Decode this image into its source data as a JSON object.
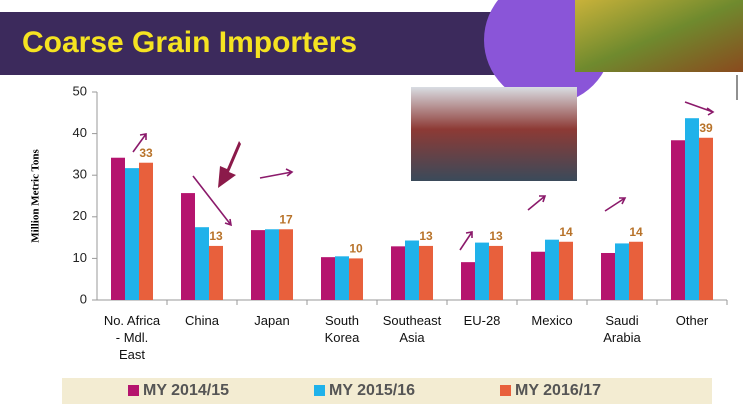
{
  "chart_data": {
    "type": "bar",
    "title": "Coarse Grain Importers",
    "y_label": "Million Metric Tons",
    "categories": [
      "No. Africa - Mdl. East",
      "China",
      "Japan",
      "South Korea",
      "Southeast Asia",
      "EU-28",
      "Mexico",
      "Saudi Arabia",
      "Other"
    ],
    "series": [
      {
        "name": "MY 2014/15",
        "color": "#b5146e",
        "values": [
          34.2,
          25.7,
          16.8,
          10.3,
          12.9,
          9.1,
          11.6,
          11.3,
          38.4
        ]
      },
      {
        "name": "MY 2015/16",
        "color": "#1fb2ea",
        "values": [
          31.7,
          17.5,
          17,
          10.5,
          14.3,
          13.8,
          14.5,
          13.6,
          43.7
        ]
      },
      {
        "name": "MY 2016/17",
        "color": "#e8603c",
        "values": [
          33,
          13,
          17,
          10,
          13,
          13,
          14,
          14,
          39
        ],
        "data_labels": true
      }
    ],
    "ylim": [
      0,
      50
    ],
    "yticks": [
      0,
      10,
      20,
      30,
      40,
      50
    ],
    "grid": false
  }
}
